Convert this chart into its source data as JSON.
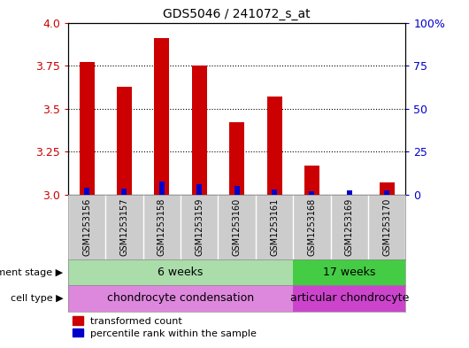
{
  "title": "GDS5046 / 241072_s_at",
  "samples": [
    "GSM1253156",
    "GSM1253157",
    "GSM1253158",
    "GSM1253159",
    "GSM1253160",
    "GSM1253161",
    "GSM1253168",
    "GSM1253169",
    "GSM1253170"
  ],
  "transformed_counts": [
    3.77,
    3.63,
    3.91,
    3.75,
    3.42,
    3.57,
    3.17,
    3.0,
    3.07
  ],
  "percentile_ranks": [
    4.0,
    3.5,
    8.0,
    6.0,
    5.0,
    3.0,
    2.0,
    2.5,
    2.5
  ],
  "ylim_left": [
    3.0,
    4.0
  ],
  "ylim_right": [
    0,
    100
  ],
  "yticks_left": [
    3.0,
    3.25,
    3.5,
    3.75,
    4.0
  ],
  "yticks_right": [
    0,
    25,
    50,
    75,
    100
  ],
  "bar_color_red": "#cc0000",
  "bar_color_blue": "#0000cc",
  "bar_width": 0.4,
  "groups": [
    {
      "label": "6 weeks",
      "start": 0,
      "end": 6,
      "color": "#aaddaa"
    },
    {
      "label": "17 weeks",
      "start": 6,
      "end": 9,
      "color": "#44cc44"
    }
  ],
  "cell_types": [
    {
      "label": "chondrocyte condensation",
      "start": 0,
      "end": 6,
      "color": "#dd88dd"
    },
    {
      "label": "articular chondrocyte",
      "start": 6,
      "end": 9,
      "color": "#cc44cc"
    }
  ],
  "dev_stage_label": "development stage",
  "cell_type_label": "cell type",
  "legend_red": "transformed count",
  "legend_blue": "percentile rank within the sample",
  "gridline_color": "#000000",
  "tick_color_left": "#cc0000",
  "tick_color_right": "#0000cc",
  "sample_box_color": "#cccccc",
  "right_ytick_labels": [
    "0",
    "25",
    "50",
    "75",
    "100%"
  ]
}
